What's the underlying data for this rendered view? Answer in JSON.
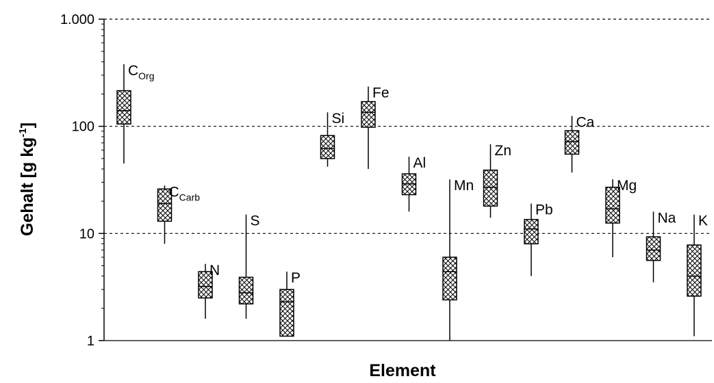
{
  "chart_data": {
    "type": "box",
    "xlabel": "Element",
    "ylabel": "Gehalt [g kg-1]",
    "ylabel_parts": {
      "main": "Gehalt [g kg",
      "sup": "-1",
      "end": "]"
    },
    "yscale": "log",
    "ylim": [
      1,
      1000
    ],
    "yticks": [
      {
        "value": 1,
        "label": "1"
      },
      {
        "value": 10,
        "label": "10"
      },
      {
        "value": 100,
        "label": "100"
      },
      {
        "value": 1000,
        "label": "1.000"
      }
    ],
    "grid": "horizontal-dashed",
    "elements": [
      {
        "label": "C",
        "sub": "Org",
        "min": 45,
        "q1": 105,
        "median": 140,
        "q3": 215,
        "max": 380
      },
      {
        "label": "C",
        "sub": "Carb",
        "min": 8,
        "q1": 13,
        "median": 19,
        "q3": 26,
        "max": 28
      },
      {
        "label": "N",
        "sub": "",
        "min": 1.6,
        "q1": 2.5,
        "median": 3.2,
        "q3": 4.4,
        "max": 5.2
      },
      {
        "label": "S",
        "sub": "",
        "min": 1.6,
        "q1": 2.2,
        "median": 2.8,
        "q3": 3.9,
        "max": 15
      },
      {
        "label": "P",
        "sub": "",
        "min": 1.1,
        "q1": 1.1,
        "median": 2.3,
        "q3": 3.0,
        "max": 4.4
      },
      {
        "label": "Si",
        "sub": "",
        "min": 42,
        "q1": 50,
        "median": 62,
        "q3": 82,
        "max": 135
      },
      {
        "label": "Fe",
        "sub": "",
        "min": 40,
        "q1": 98,
        "median": 135,
        "q3": 170,
        "max": 235
      },
      {
        "label": "Al",
        "sub": "",
        "min": 16,
        "q1": 23,
        "median": 29,
        "q3": 36,
        "max": 52
      },
      {
        "label": "Mn",
        "sub": "",
        "min": 1,
        "q1": 2.4,
        "median": 4.4,
        "q3": 6.0,
        "max": 32
      },
      {
        "label": "Zn",
        "sub": "",
        "min": 14,
        "q1": 18,
        "median": 27,
        "q3": 39,
        "max": 68
      },
      {
        "label": "Pb",
        "sub": "",
        "min": 4,
        "q1": 8,
        "median": 11,
        "q3": 13.5,
        "max": 19
      },
      {
        "label": "Ca",
        "sub": "",
        "min": 37,
        "q1": 55,
        "median": 72,
        "q3": 91,
        "max": 125
      },
      {
        "label": "Mg",
        "sub": "",
        "min": 6,
        "q1": 12.5,
        "median": 17,
        "q3": 27,
        "max": 32
      },
      {
        "label": "Na",
        "sub": "",
        "min": 3.5,
        "q1": 5.6,
        "median": 7,
        "q3": 9.3,
        "max": 16
      },
      {
        "label": "K",
        "sub": "",
        "min": 1.1,
        "q1": 2.6,
        "median": 4.0,
        "q3": 7.8,
        "max": 15
      }
    ]
  }
}
